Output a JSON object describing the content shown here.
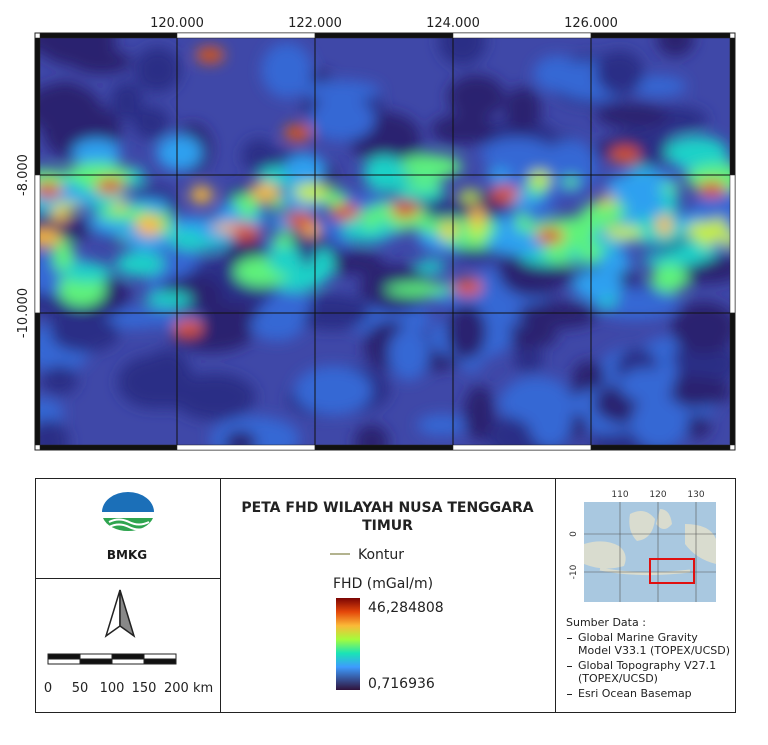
{
  "map": {
    "x_labels": [
      "120.000",
      "122.000",
      "124.000",
      "126.000"
    ],
    "y_labels": [
      "-8.000",
      "-10.000"
    ]
  },
  "logo": {
    "text": "BMKG"
  },
  "title": "PETA FHD WILAYAH NUSA TENGGARA TIMUR",
  "legend": {
    "contour": "Kontur",
    "heading": "FHD (mGal/m)",
    "max": "46,284808",
    "min": "0,716936"
  },
  "scale_bar": {
    "labels": [
      "0",
      "50",
      "100",
      "150",
      "200 km"
    ]
  },
  "inset": {
    "x_labels": [
      "110",
      "120",
      "130"
    ],
    "y_labels": [
      "0",
      "-10"
    ]
  },
  "sources": {
    "heading": "Sumber Data :",
    "items": [
      "Global Marine Gravity Model V33.1 (TOPEX/UCSD)",
      "Global Topography V27.1 (TOPEX/UCSD)",
      "Esri Ocean Basemap"
    ]
  }
}
